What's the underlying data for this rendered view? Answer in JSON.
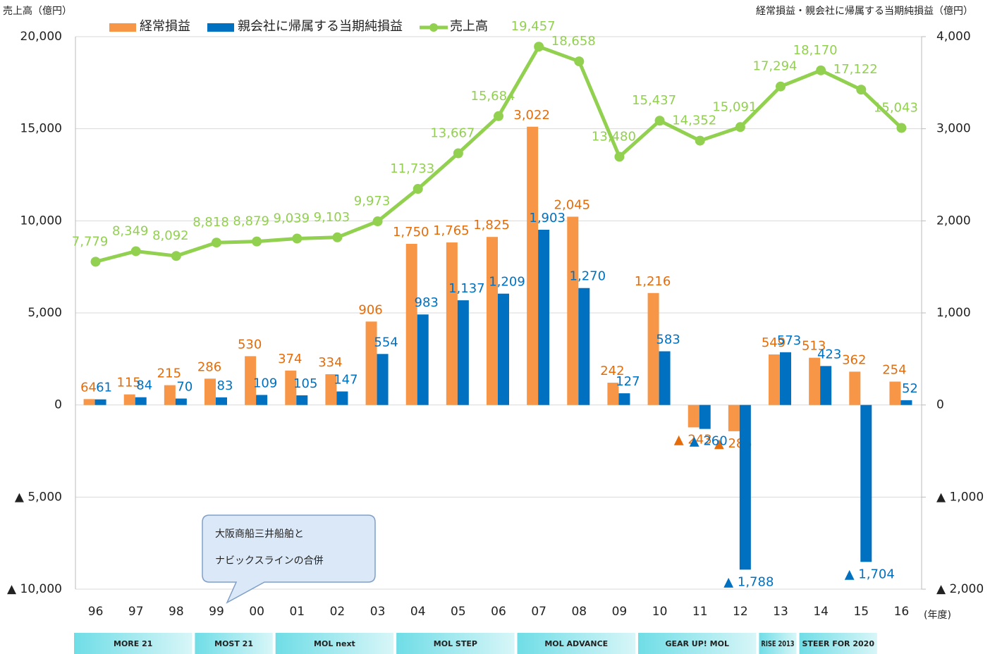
{
  "chart_data": {
    "type": "bar-line",
    "y_label": "売上高（億円）",
    "y2_label": "経常損益・親会社に帰属する当期純損益（億円）",
    "x_unit": "(年度)",
    "categories": [
      "96",
      "97",
      "98",
      "99",
      "00",
      "01",
      "02",
      "03",
      "04",
      "05",
      "06",
      "07",
      "08",
      "09",
      "10",
      "11",
      "12",
      "13",
      "14",
      "15",
      "16"
    ],
    "series": [
      {
        "name": "経常損益",
        "type": "bar",
        "axis": "y2",
        "color": "#f79646",
        "label_color": "#e46c0a",
        "values": [
          64,
          115,
          215,
          286,
          530,
          374,
          334,
          906,
          1750,
          1765,
          1825,
          3022,
          2045,
          242,
          1216,
          -243,
          -285,
          549,
          513,
          362,
          254
        ],
        "value_labels": [
          "64",
          "115",
          "215",
          "286",
          "530",
          "374",
          "334",
          "906",
          "1,750",
          "1,765",
          "1,825",
          "3,022",
          "2,045",
          "242",
          "1,216",
          "▲ 243",
          "▲ 285",
          "549",
          "513",
          "362",
          "254"
        ]
      },
      {
        "name": "親会社に帰属する当期純損益",
        "type": "bar",
        "axis": "y2",
        "color": "#0070c0",
        "label_color": "#0070c0",
        "values": [
          61,
          84,
          70,
          83,
          109,
          105,
          147,
          554,
          983,
          1137,
          1209,
          1903,
          1270,
          127,
          583,
          -260,
          -1788,
          573,
          423,
          -1704,
          52
        ],
        "value_labels": [
          "61",
          "84",
          "70",
          "83",
          "109",
          "105",
          "147",
          "554",
          "983",
          "1,137",
          "1,209",
          "1,903",
          "1,270",
          "127",
          "583",
          "▲ 260",
          "▲ 1,788",
          "573",
          "423",
          "▲ 1,704",
          "52"
        ]
      },
      {
        "name": "売上高",
        "type": "line",
        "axis": "y",
        "color": "#92d050",
        "label_color": "#92d050",
        "values": [
          7779,
          8349,
          8092,
          8818,
          8879,
          9039,
          9103,
          9973,
          11733,
          13667,
          15684,
          19457,
          18658,
          13480,
          15437,
          14352,
          15091,
          17294,
          18170,
          17122,
          15043
        ],
        "value_labels": [
          "7,779",
          "8,349",
          "8,092",
          "8,818",
          "8,879",
          "9,039",
          "9,103",
          "9,973",
          "11,733",
          "13,667",
          "15,684",
          "19,457",
          "18,658",
          "13,480",
          "15,437",
          "14,352",
          "15,091",
          "17,294",
          "18,170",
          "17,122",
          "15,043"
        ]
      }
    ],
    "ylim": [
      -10000,
      20000
    ],
    "yticks": [
      {
        "value": -10000,
        "label": "▲ 10,000"
      },
      {
        "value": -5000,
        "label": "▲ 5,000"
      },
      0,
      {
        "value": 5000,
        "label": "5,000"
      },
      {
        "value": 10000,
        "label": "10,000"
      },
      {
        "value": 15000,
        "label": "15,000"
      },
      {
        "value": 20000,
        "label": "20,000"
      }
    ],
    "y2lim": [
      -2000,
      4000
    ],
    "y2ticks": [
      {
        "value": -2000,
        "label": "▲ 2,000"
      },
      {
        "value": -1000,
        "label": "▲ 1,000"
      },
      0,
      {
        "value": 1000,
        "label": "1,000"
      },
      {
        "value": 2000,
        "label": "2,000"
      },
      {
        "value": 3000,
        "label": "3,000"
      },
      {
        "value": 4000,
        "label": "4,000"
      }
    ],
    "grid": true,
    "legend": "top",
    "callout": [
      "大阪商船三井船舶と",
      "ナビックスラインの合併"
    ],
    "plans": [
      "MORE 21",
      "MOST 21",
      "MOL next",
      "MOL STEP",
      "MOL ADVANCE",
      "GEAR UP! MOL",
      "RISE 2013",
      "STEER FOR 2020"
    ]
  }
}
